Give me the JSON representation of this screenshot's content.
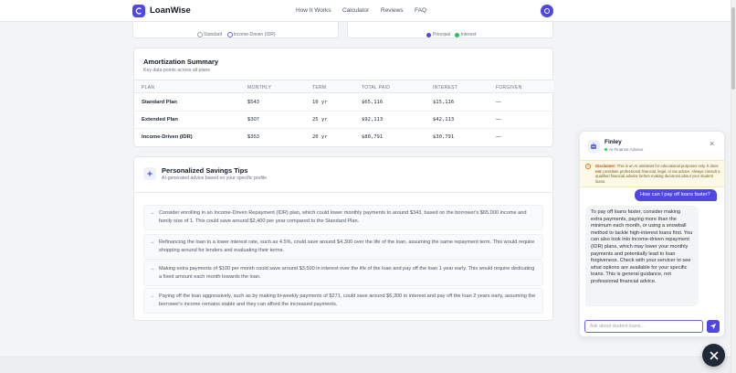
{
  "nav": {
    "brand": "LoanWise",
    "links": [
      "How It Works",
      "Calculator",
      "Reviews",
      "FAQ"
    ]
  },
  "chart_legends": {
    "left": [
      "Standard",
      "Income-Driven (IDR)"
    ],
    "right": [
      {
        "label": "Principal",
        "color": "#4f46e5"
      },
      {
        "label": "Interest",
        "color": "#22c55e"
      }
    ]
  },
  "summary": {
    "title": "Amortization Summary",
    "subtitle": "Key data points across all plans",
    "columns": [
      "PLAN",
      "MONTHLY",
      "TERM",
      "TOTAL PAID",
      "INTEREST",
      "FORGIVEN"
    ],
    "rows": [
      {
        "plan": "Standard Plan",
        "monthly": "$543",
        "term": "10 yr",
        "total": "$65,116",
        "interest": "$15,116",
        "forgiven": "—"
      },
      {
        "plan": "Extended Plan",
        "monthly": "$307",
        "term": "25 yr",
        "total": "$92,113",
        "interest": "$42,113",
        "forgiven": "—"
      },
      {
        "plan": "Income-Driven (IDR)",
        "monthly": "$353",
        "term": "20 yr",
        "total": "$80,791",
        "interest": "$30,791",
        "forgiven": "—"
      }
    ]
  },
  "tips": {
    "title": "Personalized Savings Tips",
    "subtitle": "AI-generated advice based on your specific profile",
    "arrow": "→",
    "items": [
      "Consider enrolling in an Income-Driven Repayment (IDR) plan, which could lower monthly payments to around $343, based on the borrower's $65,000 income and family size of 1. This could save around $2,400 per year compared to the Standard Plan.",
      "Refinancing the loan to a lower interest rate, such as 4.5%, could save around $4,300 over the life of the loan, assuming the same repayment term. This would require shopping around for lenders and evaluating their terms.",
      "Making extra payments of $100 per month could save around $3,500 in interest over the life of the loan and pay off the loan 1 year early. This would require dedicating a fixed amount each month towards the loan.",
      "Paying off the loan aggressively, such as by making bi-weekly payments of $271, could save around $6,300 in interest and pay off the loan 2 years early, assuming the borrower's income remains stable and they can afford the increased payments."
    ]
  },
  "chat": {
    "name": "Finley",
    "role": "AI Finance Advisor",
    "close": "×",
    "disclaimer_label": "Disclaimer:",
    "disclaimer_a": " This is an AI assistant for educational purposes only. It does ",
    "disclaimer_not": "not",
    "disclaimer_b": " constitute professional financial, legal, or tax advice. Always consult a qualified financial advisor before making decisions about your student loans.",
    "user_message": "How can I pay off loans faster?",
    "bot_message": "To pay off loans faster, consider making extra payments, paying more than the minimum each month, or using a snowball method to tackle high-interest loans first. You can also look into income-driven repayment (IDR) plans, which may lower your monthly payments and potentially lead to loan forgiveness. Check with your servicer to see what options are available for your specific loans. This is general guidance, not professional financial advice.",
    "input_placeholder": "Ask about student loans..."
  }
}
